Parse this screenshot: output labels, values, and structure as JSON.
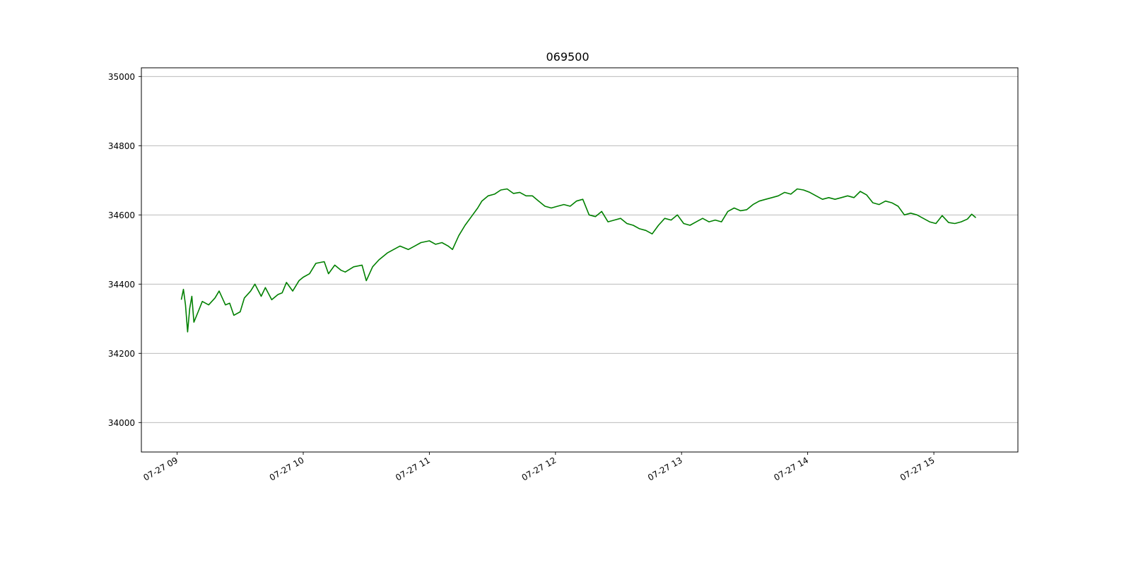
{
  "chart_data": {
    "type": "line",
    "title": "069500",
    "xlabel": "",
    "ylabel": "",
    "x_start": "07-27 09:02",
    "x_end": "07-27 15:20",
    "xlim": [
      "07-27 08:43",
      "07-27 15:40"
    ],
    "ylim": [
      33915,
      35025
    ],
    "grid": "horizontal",
    "legend": "none",
    "x_ticks": [
      "07-27 09",
      "07-27 10",
      "07-27 11",
      "07-27 12",
      "07-27 13",
      "07-27 14",
      "07-27 15"
    ],
    "y_ticks": [
      34000,
      34200,
      34400,
      34600,
      34800,
      35000
    ],
    "series": [
      {
        "color": "#008000",
        "points": [
          [
            "07-27 09:02",
            34355
          ],
          [
            "07-27 09:03",
            34385
          ],
          [
            "07-27 09:04",
            34340
          ],
          [
            "07-27 09:05",
            34262
          ],
          [
            "07-27 09:06",
            34330
          ],
          [
            "07-27 09:07",
            34365
          ],
          [
            "07-27 09:08",
            34290
          ],
          [
            "07-27 09:10",
            34320
          ],
          [
            "07-27 09:12",
            34350
          ],
          [
            "07-27 09:15",
            34340
          ],
          [
            "07-27 09:18",
            34360
          ],
          [
            "07-27 09:20",
            34380
          ],
          [
            "07-27 09:23",
            34340
          ],
          [
            "07-27 09:25",
            34345
          ],
          [
            "07-27 09:27",
            34310
          ],
          [
            "07-27 09:30",
            34320
          ],
          [
            "07-27 09:32",
            34360
          ],
          [
            "07-27 09:35",
            34380
          ],
          [
            "07-27 09:37",
            34400
          ],
          [
            "07-27 09:40",
            34365
          ],
          [
            "07-27 09:42",
            34390
          ],
          [
            "07-27 09:45",
            34355
          ],
          [
            "07-27 09:48",
            34370
          ],
          [
            "07-27 09:50",
            34375
          ],
          [
            "07-27 09:52",
            34405
          ],
          [
            "07-27 09:55",
            34380
          ],
          [
            "07-27 09:58",
            34410
          ],
          [
            "07-27 10:00",
            34420
          ],
          [
            "07-27 10:03",
            34430
          ],
          [
            "07-27 10:06",
            34460
          ],
          [
            "07-27 10:10",
            34465
          ],
          [
            "07-27 10:12",
            34430
          ],
          [
            "07-27 10:15",
            34455
          ],
          [
            "07-27 10:18",
            34440
          ],
          [
            "07-27 10:20",
            34435
          ],
          [
            "07-27 10:24",
            34450
          ],
          [
            "07-27 10:28",
            34455
          ],
          [
            "07-27 10:30",
            34410
          ],
          [
            "07-27 10:33",
            34450
          ],
          [
            "07-27 10:36",
            34470
          ],
          [
            "07-27 10:40",
            34490
          ],
          [
            "07-27 10:43",
            34500
          ],
          [
            "07-27 10:46",
            34510
          ],
          [
            "07-27 10:50",
            34500
          ],
          [
            "07-27 10:53",
            34510
          ],
          [
            "07-27 10:56",
            34520
          ],
          [
            "07-27 11:00",
            34525
          ],
          [
            "07-27 11:03",
            34515
          ],
          [
            "07-27 11:06",
            34520
          ],
          [
            "07-27 11:09",
            34510
          ],
          [
            "07-27 11:11",
            34500
          ],
          [
            "07-27 11:14",
            34540
          ],
          [
            "07-27 11:17",
            34570
          ],
          [
            "07-27 11:20",
            34595
          ],
          [
            "07-27 11:23",
            34620
          ],
          [
            "07-27 11:25",
            34640
          ],
          [
            "07-27 11:28",
            34655
          ],
          [
            "07-27 11:31",
            34660
          ],
          [
            "07-27 11:34",
            34672
          ],
          [
            "07-27 11:37",
            34675
          ],
          [
            "07-27 11:40",
            34662
          ],
          [
            "07-27 11:43",
            34665
          ],
          [
            "07-27 11:46",
            34655
          ],
          [
            "07-27 11:49",
            34655
          ],
          [
            "07-27 11:52",
            34640
          ],
          [
            "07-27 11:55",
            34625
          ],
          [
            "07-27 11:58",
            34620
          ],
          [
            "07-27 12:01",
            34625
          ],
          [
            "07-27 12:04",
            34630
          ],
          [
            "07-27 12:07",
            34625
          ],
          [
            "07-27 12:10",
            34640
          ],
          [
            "07-27 12:13",
            34645
          ],
          [
            "07-27 12:16",
            34600
          ],
          [
            "07-27 12:19",
            34595
          ],
          [
            "07-27 12:22",
            34610
          ],
          [
            "07-27 12:25",
            34580
          ],
          [
            "07-27 12:28",
            34585
          ],
          [
            "07-27 12:31",
            34590
          ],
          [
            "07-27 12:34",
            34575
          ],
          [
            "07-27 12:37",
            34570
          ],
          [
            "07-27 12:40",
            34560
          ],
          [
            "07-27 12:43",
            34555
          ],
          [
            "07-27 12:46",
            34545
          ],
          [
            "07-27 12:49",
            34570
          ],
          [
            "07-27 12:52",
            34590
          ],
          [
            "07-27 12:55",
            34585
          ],
          [
            "07-27 12:58",
            34600
          ],
          [
            "07-27 13:01",
            34575
          ],
          [
            "07-27 13:04",
            34570
          ],
          [
            "07-27 13:07",
            34580
          ],
          [
            "07-27 13:10",
            34590
          ],
          [
            "07-27 13:13",
            34580
          ],
          [
            "07-27 13:16",
            34585
          ],
          [
            "07-27 13:19",
            34580
          ],
          [
            "07-27 13:22",
            34610
          ],
          [
            "07-27 13:25",
            34620
          ],
          [
            "07-27 13:28",
            34612
          ],
          [
            "07-27 13:31",
            34615
          ],
          [
            "07-27 13:34",
            34630
          ],
          [
            "07-27 13:37",
            34640
          ],
          [
            "07-27 13:40",
            34645
          ],
          [
            "07-27 13:43",
            34650
          ],
          [
            "07-27 13:46",
            34655
          ],
          [
            "07-27 13:49",
            34665
          ],
          [
            "07-27 13:52",
            34660
          ],
          [
            "07-27 13:55",
            34675
          ],
          [
            "07-27 13:58",
            34672
          ],
          [
            "07-27 14:01",
            34665
          ],
          [
            "07-27 14:04",
            34655
          ],
          [
            "07-27 14:07",
            34645
          ],
          [
            "07-27 14:10",
            34650
          ],
          [
            "07-27 14:13",
            34645
          ],
          [
            "07-27 14:16",
            34650
          ],
          [
            "07-27 14:19",
            34655
          ],
          [
            "07-27 14:22",
            34650
          ],
          [
            "07-27 14:25",
            34668
          ],
          [
            "07-27 14:28",
            34658
          ],
          [
            "07-27 14:31",
            34635
          ],
          [
            "07-27 14:34",
            34630
          ],
          [
            "07-27 14:37",
            34640
          ],
          [
            "07-27 14:40",
            34635
          ],
          [
            "07-27 14:43",
            34625
          ],
          [
            "07-27 14:46",
            34600
          ],
          [
            "07-27 14:49",
            34605
          ],
          [
            "07-27 14:52",
            34600
          ],
          [
            "07-27 14:55",
            34590
          ],
          [
            "07-27 14:58",
            34580
          ],
          [
            "07-27 15:01",
            34575
          ],
          [
            "07-27 15:04",
            34598
          ],
          [
            "07-27 15:07",
            34578
          ],
          [
            "07-27 15:10",
            34575
          ],
          [
            "07-27 15:13",
            34580
          ],
          [
            "07-27 15:16",
            34588
          ],
          [
            "07-27 15:18",
            34602
          ],
          [
            "07-27 15:20",
            34592
          ]
        ]
      }
    ]
  }
}
